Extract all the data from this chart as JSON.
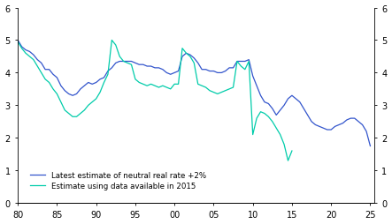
{
  "ylim": [
    0,
    6
  ],
  "xlim": [
    1980,
    2025.5
  ],
  "xtick_positions": [
    1980,
    1985,
    1990,
    1995,
    2000,
    2005,
    2010,
    2015,
    2020,
    2025
  ],
  "xtick_labels": [
    "80",
    "85",
    "90",
    "95",
    "00",
    "05",
    "10",
    "15",
    "20",
    "25"
  ],
  "yticks": [
    0,
    1,
    2,
    3,
    4,
    5,
    6
  ],
  "blue_color": "#3355cc",
  "cyan_color": "#00ccaa",
  "legend_blue": "Latest estimate of neutral real rate +2%",
  "legend_cyan": "Estimate using data available in 2015",
  "blue_x": [
    1980.0,
    1980.5,
    1981.0,
    1981.5,
    1982.0,
    1982.5,
    1983.0,
    1983.5,
    1984.0,
    1984.5,
    1985.0,
    1985.5,
    1986.0,
    1986.5,
    1987.0,
    1987.5,
    1988.0,
    1988.5,
    1989.0,
    1989.5,
    1990.0,
    1990.5,
    1991.0,
    1991.5,
    1992.0,
    1992.5,
    1993.0,
    1993.5,
    1994.0,
    1994.5,
    1995.0,
    1995.5,
    1996.0,
    1996.5,
    1997.0,
    1997.5,
    1998.0,
    1998.5,
    1999.0,
    1999.5,
    2000.0,
    2000.5,
    2001.0,
    2001.5,
    2002.0,
    2002.5,
    2003.0,
    2003.5,
    2004.0,
    2004.5,
    2005.0,
    2005.5,
    2006.0,
    2006.5,
    2007.0,
    2007.5,
    2008.0,
    2008.5,
    2009.0,
    2009.5,
    2010.0,
    2010.5,
    2011.0,
    2011.5,
    2012.0,
    2012.5,
    2013.0,
    2013.5,
    2014.0,
    2014.5,
    2015.0,
    2015.5,
    2016.0,
    2016.5,
    2017.0,
    2017.5,
    2018.0,
    2018.5,
    2019.0,
    2019.5,
    2020.0,
    2020.5,
    2021.0,
    2021.5,
    2022.0,
    2022.5,
    2023.0,
    2023.5,
    2024.0,
    2024.5,
    2025.0
  ],
  "blue_y": [
    5.0,
    4.8,
    4.7,
    4.65,
    4.55,
    4.4,
    4.3,
    4.1,
    4.1,
    3.95,
    3.85,
    3.6,
    3.45,
    3.35,
    3.3,
    3.35,
    3.5,
    3.6,
    3.7,
    3.65,
    3.7,
    3.8,
    3.85,
    4.05,
    4.15,
    4.3,
    4.35,
    4.35,
    4.35,
    4.35,
    4.3,
    4.25,
    4.25,
    4.2,
    4.2,
    4.15,
    4.15,
    4.1,
    4.0,
    3.95,
    4.0,
    4.05,
    4.5,
    4.6,
    4.55,
    4.45,
    4.3,
    4.1,
    4.1,
    4.05,
    4.05,
    4.0,
    4.0,
    4.05,
    4.15,
    4.15,
    4.35,
    4.35,
    4.35,
    4.4,
    3.9,
    3.6,
    3.3,
    3.1,
    3.05,
    2.9,
    2.7,
    2.85,
    3.0,
    3.2,
    3.3,
    3.2,
    3.1,
    2.9,
    2.7,
    2.5,
    2.4,
    2.35,
    2.3,
    2.25,
    2.25,
    2.35,
    2.4,
    2.45,
    2.55,
    2.6,
    2.6,
    2.5,
    2.4,
    2.2,
    1.75
  ],
  "cyan_x": [
    1980.0,
    1980.5,
    1981.0,
    1981.5,
    1982.0,
    1982.5,
    1983.0,
    1983.5,
    1984.0,
    1984.5,
    1985.0,
    1985.5,
    1986.0,
    1986.5,
    1987.0,
    1987.5,
    1988.0,
    1988.5,
    1989.0,
    1989.5,
    1990.0,
    1990.5,
    1991.0,
    1991.5,
    1992.0,
    1992.5,
    1993.0,
    1993.5,
    1994.0,
    1994.5,
    1995.0,
    1995.5,
    1996.0,
    1996.5,
    1997.0,
    1997.5,
    1998.0,
    1998.5,
    1999.0,
    1999.5,
    2000.0,
    2000.5,
    2001.0,
    2001.5,
    2002.0,
    2002.5,
    2003.0,
    2003.5,
    2004.0,
    2004.5,
    2005.0,
    2005.5,
    2006.0,
    2006.5,
    2007.0,
    2007.5,
    2008.0,
    2008.5,
    2009.0,
    2009.5,
    2010.0,
    2010.5,
    2011.0,
    2011.5,
    2012.0,
    2012.5,
    2013.0,
    2013.5,
    2014.0,
    2014.5,
    2015.0
  ],
  "cyan_y": [
    4.95,
    4.75,
    4.6,
    4.5,
    4.4,
    4.2,
    4.0,
    3.8,
    3.7,
    3.5,
    3.35,
    3.1,
    2.85,
    2.75,
    2.65,
    2.65,
    2.75,
    2.85,
    3.0,
    3.1,
    3.2,
    3.4,
    3.7,
    3.95,
    5.0,
    4.85,
    4.5,
    4.35,
    4.3,
    4.25,
    3.8,
    3.7,
    3.65,
    3.6,
    3.65,
    3.6,
    3.55,
    3.6,
    3.55,
    3.5,
    3.65,
    3.65,
    4.75,
    4.6,
    4.5,
    4.3,
    3.65,
    3.6,
    3.55,
    3.45,
    3.4,
    3.35,
    3.4,
    3.45,
    3.5,
    3.55,
    4.35,
    4.2,
    4.1,
    4.35,
    2.1,
    2.6,
    2.8,
    2.75,
    2.65,
    2.5,
    2.3,
    2.1,
    1.8,
    1.3,
    1.6
  ]
}
